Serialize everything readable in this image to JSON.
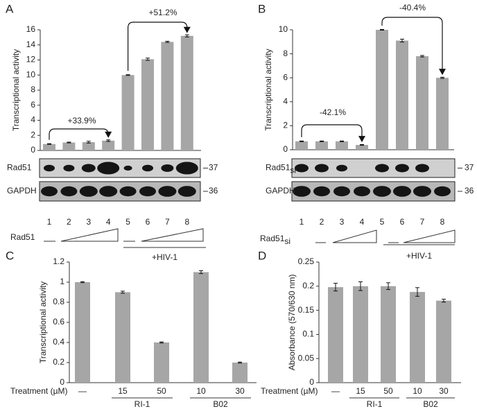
{
  "chart_data": [
    {
      "type": "bar",
      "panel_label": "A",
      "ylabel": "Transcriptional activity",
      "categories": [
        "1",
        "2",
        "3",
        "4",
        "5",
        "6",
        "7",
        "8"
      ],
      "values": [
        0.85,
        1.05,
        1.1,
        1.3,
        10.0,
        12.1,
        14.4,
        15.2
      ],
      "errors": [
        0.05,
        0.05,
        0.12,
        0.1,
        0.05,
        0.15,
        0.08,
        0.15
      ],
      "color": "#a6a6a6",
      "ylim": [
        0,
        16
      ],
      "yticks": [
        0,
        2,
        4,
        6,
        8,
        10,
        12,
        14,
        16
      ],
      "grid": false,
      "annotations": [
        "+33.9%",
        "+51.2%"
      ],
      "blot_rows": [
        {
          "label": "Rad51",
          "marker": "37"
        },
        {
          "label": "GAPDH",
          "marker": "36"
        }
      ],
      "treatment": {
        "label": "Rad51"
      },
      "group_label": "+HIV-1"
    },
    {
      "type": "bar",
      "panel_label": "B",
      "ylabel": "Transcriptional activity",
      "categories": [
        "1",
        "2",
        "3",
        "4",
        "5",
        "6",
        "7",
        "8"
      ],
      "values": [
        0.7,
        0.7,
        0.7,
        0.4,
        10.0,
        9.1,
        7.8,
        6.0
      ],
      "errors": [
        0.03,
        0.03,
        0.03,
        0.03,
        0.03,
        0.12,
        0.06,
        0.05
      ],
      "color": "#a6a6a6",
      "ylim": [
        0,
        10
      ],
      "yticks": [
        0,
        2,
        4,
        6,
        8,
        10
      ],
      "grid": false,
      "annotations": [
        "-42.1%",
        "-40.4%"
      ],
      "blot_rows": [
        {
          "label": "Rad51",
          "sub": "si",
          "marker": "37"
        },
        {
          "label": "GAPDH",
          "marker": "36"
        }
      ],
      "treatment": {
        "label": "Rad51",
        "sub": "si"
      },
      "group_label": "+HIV-1"
    },
    {
      "type": "bar",
      "panel_label": "C",
      "ylabel": "Transcriptional activity",
      "xlabel": "Treatment  (µM)",
      "categories": [
        "—",
        "15",
        "50",
        "10",
        "30"
      ],
      "values": [
        1.0,
        0.9,
        0.4,
        1.1,
        0.2
      ],
      "errors": [
        0.005,
        0.01,
        0.005,
        0.015,
        0.005
      ],
      "color": "#a6a6a6",
      "ylim": [
        0,
        1.2
      ],
      "yticks": [
        0,
        0.2,
        0.4,
        0.6,
        0.8,
        1,
        1.2
      ],
      "grid": false,
      "groups": [
        "RI-1",
        "B02"
      ]
    },
    {
      "type": "bar",
      "panel_label": "D",
      "ylabel": "Absorbance (570/630 nm)",
      "xlabel": "Treatment  (µM)",
      "categories": [
        "—",
        "15",
        "50",
        "10",
        "30"
      ],
      "values": [
        0.198,
        0.2,
        0.2,
        0.188,
        0.17
      ],
      "errors": [
        0.008,
        0.009,
        0.007,
        0.009,
        0.003
      ],
      "color": "#a6a6a6",
      "ylim": [
        0,
        0.25
      ],
      "yticks": [
        0,
        0.05,
        0.1,
        0.15,
        0.2,
        0.25
      ],
      "grid": false,
      "groups": [
        "RI-1",
        "B02"
      ]
    }
  ]
}
